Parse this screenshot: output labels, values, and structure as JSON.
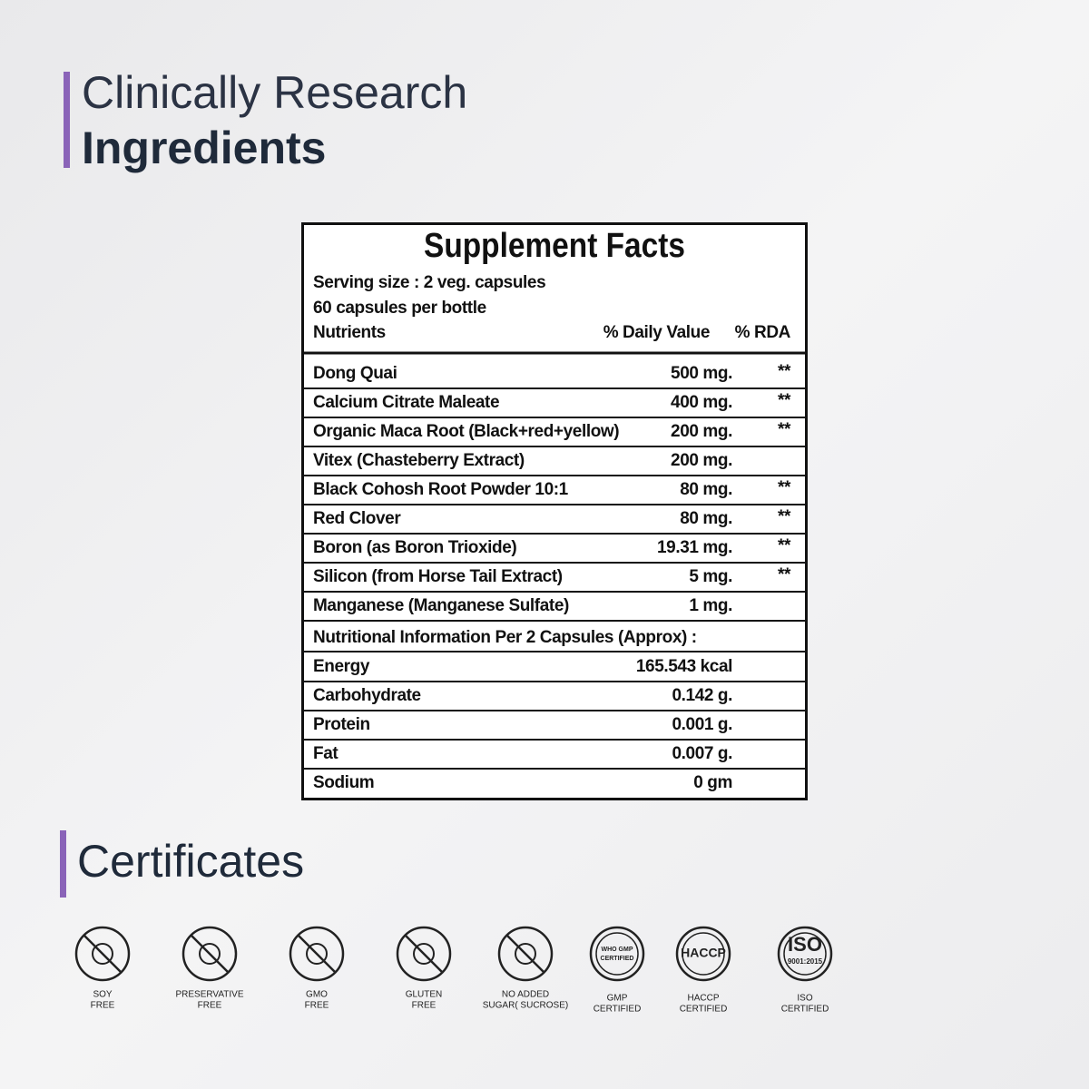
{
  "header": {
    "line1": "Clinically Research",
    "line2": "Ingredients"
  },
  "facts": {
    "title": "Supplement Facts",
    "serving": "Serving size : 2 veg. capsules",
    "count": "60 capsules per bottle",
    "columns": [
      "Nutrients",
      "% Daily Value",
      "% RDA"
    ],
    "rows": [
      {
        "name": "Dong Quai",
        "amount": "500 mg.",
        "rda": "**"
      },
      {
        "name": "Calcium Citrate Maleate",
        "amount": "400 mg.",
        "rda": "**"
      },
      {
        "name": "Organic Maca Root (Black+red+yellow)",
        "amount": "200 mg.",
        "rda": "**"
      },
      {
        "name": "Vitex (Chasteberry Extract)",
        "amount": "200 mg."
      },
      {
        "name": "Black Cohosh Root Powder 10:1",
        "amount": "80 mg.",
        "rda": "**"
      },
      {
        "name": "Red Clover",
        "amount": "80 mg.",
        "rda": "**"
      },
      {
        "name": "Boron (as Boron Trioxide)",
        "amount": "19.31 mg.",
        "rda": "**"
      },
      {
        "name": "Silicon (from Horse Tail Extract)",
        "amount": "5 mg.",
        "rda": "**"
      },
      {
        "name": "Manganese (Manganese Sulfate)",
        "amount": "1 mg."
      }
    ],
    "nutrition_heading": "Nutritional Information Per 2 Capsules (Approx) :",
    "nutrition": [
      {
        "name": "Energy",
        "amount": "165.543 kcal"
      },
      {
        "name": "Carbohydrate",
        "amount": "0.142 g."
      },
      {
        "name": "Protein",
        "amount": "0.001 g."
      },
      {
        "name": "Fat",
        "amount": "0.007 g."
      },
      {
        "name": "Sodium",
        "amount": "0 gm"
      }
    ]
  },
  "certificates": {
    "title": "Certificates",
    "items": [
      {
        "lines": [
          "SOY",
          "FREE"
        ]
      },
      {
        "lines": [
          "PRESERVATIVE",
          "FREE"
        ]
      },
      {
        "lines": [
          "GMO",
          "FREE"
        ]
      },
      {
        "lines": [
          "GLUTEN",
          "FREE"
        ]
      },
      {
        "lines": [
          "NO ADDED",
          "SUGAR( SUCROSE)"
        ]
      },
      {
        "lines": [
          "GMP",
          "CERTIFIED"
        ],
        "badge": [
          "WHO GMP",
          "CERTIFIED"
        ]
      },
      {
        "lines": [
          "HACCP",
          "CERTIFIED"
        ],
        "badge": [
          "HACCP"
        ]
      },
      {
        "lines": [
          "ISO",
          "CERTIFIED"
        ],
        "badge": [
          "ISO",
          "9001:2015"
        ]
      }
    ]
  }
}
